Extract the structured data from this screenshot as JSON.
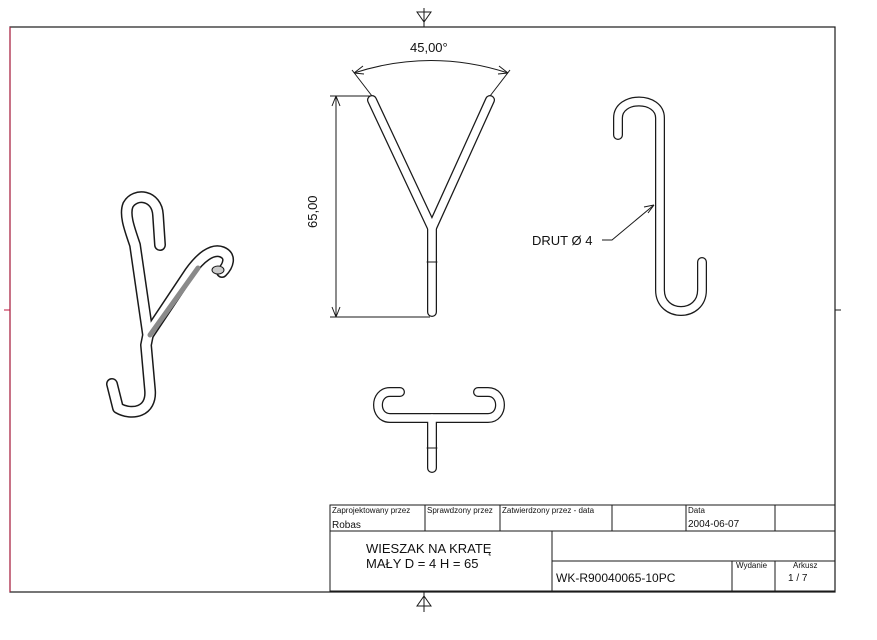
{
  "dimensions": {
    "angle": "45,00°",
    "height": "65,00",
    "wire_callout": "DRUT Ø 4"
  },
  "title_block": {
    "designed_by_label": "Zaprojektowany przez",
    "designed_by_value": "Robas",
    "checked_by_label": "Sprawdzony przez",
    "approved_label": "Zatwierdzony przez - data",
    "date_label": "Data",
    "date_value": "2004-06-07",
    "title_line1": "WIESZAK NA KRATĘ",
    "title_line2": "MAŁY D = 4 H = 65",
    "drawing_number": "WK-R90040065-10PC",
    "edition_label": "Wydanie",
    "sheet_label": "Arkusz",
    "sheet_value": "1  /  7"
  },
  "colors": {
    "line": "#1a1a1a",
    "frame_accent": "#c0143c",
    "shade": "#8a8a8a"
  }
}
